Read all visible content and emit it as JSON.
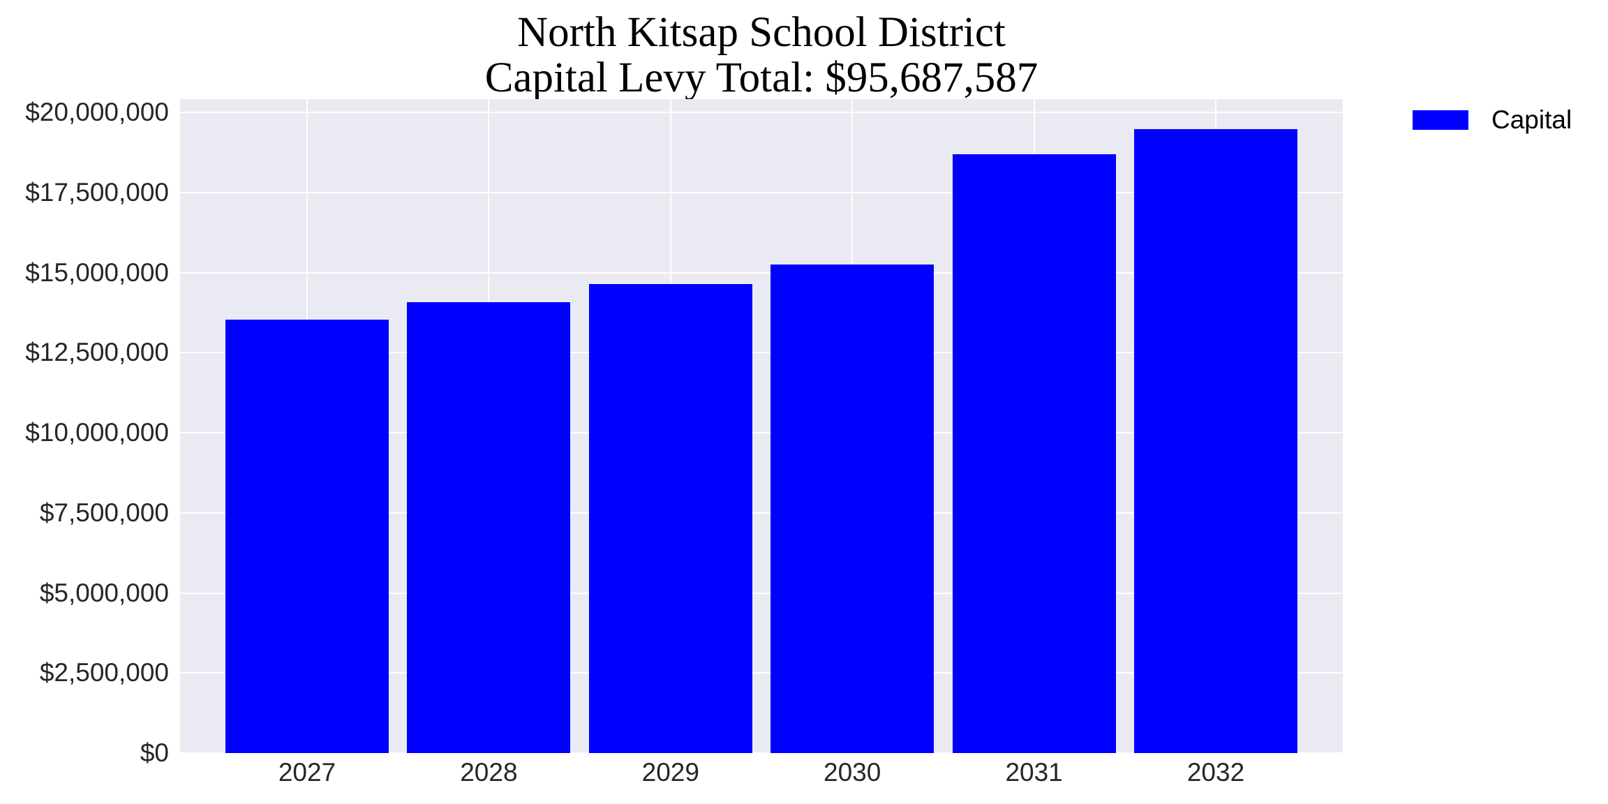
{
  "chart_data": {
    "type": "bar",
    "title": "North Kitsap School District",
    "subtitle": "Capital Levy Total: $95,687,587",
    "categories": [
      "2027",
      "2028",
      "2029",
      "2030",
      "2031",
      "2032"
    ],
    "series": [
      {
        "name": "Capital",
        "color": "#0000ff",
        "values": [
          13540000,
          14080000,
          14650000,
          15240000,
          18700000,
          19480000
        ]
      }
    ],
    "xlabel": "",
    "ylabel": "",
    "ylim": [
      0,
      20400000
    ],
    "yticks": [
      0,
      2500000,
      5000000,
      7500000,
      10000000,
      12500000,
      15000000,
      17500000,
      20000000
    ],
    "ytick_labels": [
      "$0",
      "$2,500,000",
      "$5,000,000",
      "$7,500,000",
      "$10,000,000",
      "$12,500,000",
      "$15,000,000",
      "$17,500,000",
      "$20,000,000"
    ],
    "grid": true,
    "legend_position": "outside upper right",
    "plot_background": "#eaeaf2"
  },
  "title": {
    "line1": "North Kitsap School District",
    "line2": "Capital Levy Total: $95,687,587"
  },
  "legend": {
    "items": [
      {
        "label": "Capital",
        "color": "#0000ff"
      }
    ]
  }
}
